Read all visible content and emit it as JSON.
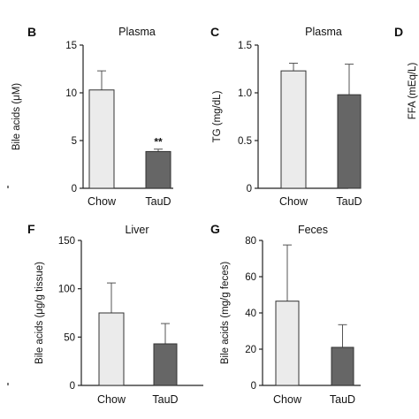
{
  "colors": {
    "chow": "#ebebeb",
    "taud": "#666666",
    "axis": "#222222",
    "errorbar": "#555555"
  },
  "chart_data": [
    {
      "panel": "B",
      "title": "Plasma",
      "type": "bar",
      "categories": [
        "Chow",
        "TauD"
      ],
      "values": [
        10.3,
        3.85
      ],
      "errors": [
        2.0,
        0.25
      ],
      "ylabel": "Bile acids (μM)",
      "ylim": [
        0,
        15
      ],
      "yticks": [
        "0",
        "5",
        "10",
        "15"
      ],
      "annotations": [
        "",
        "**"
      ],
      "grid": false
    },
    {
      "panel": "C",
      "title": "Plasma",
      "type": "bar",
      "categories": [
        "Chow",
        "TauD"
      ],
      "values": [
        1.23,
        0.98
      ],
      "errors": [
        0.08,
        0.32
      ],
      "ylabel": "TG (mg/dL)",
      "ylim": [
        0,
        1.5
      ],
      "yticks": [
        "0",
        "0.5",
        "1.0",
        "1.5"
      ],
      "annotations": [
        "",
        ""
      ],
      "grid": false
    },
    {
      "panel": "F",
      "title": "Liver",
      "type": "bar",
      "categories": [
        "Chow",
        "TauD"
      ],
      "values": [
        75,
        43
      ],
      "errors": [
        31,
        21
      ],
      "ylabel": "Bile acids (μg/g tissue)",
      "ylim": [
        0,
        150
      ],
      "yticks": [
        "0",
        "50",
        "100",
        "150"
      ],
      "annotations": [
        "",
        ""
      ],
      "grid": false
    },
    {
      "panel": "G",
      "title": "Feces",
      "type": "bar",
      "categories": [
        "Chow",
        "TauD"
      ],
      "values": [
        46.5,
        21
      ],
      "errors": [
        31,
        12.5
      ],
      "ylabel": "Bile acids (mg/g feces)",
      "ylim": [
        0,
        80
      ],
      "yticks": [
        "0",
        "20",
        "40",
        "60",
        "80"
      ],
      "annotations": [
        "",
        ""
      ],
      "grid": false
    }
  ],
  "partial_panel": {
    "label": "D",
    "ylabel": "FFA (mEq/L)"
  }
}
